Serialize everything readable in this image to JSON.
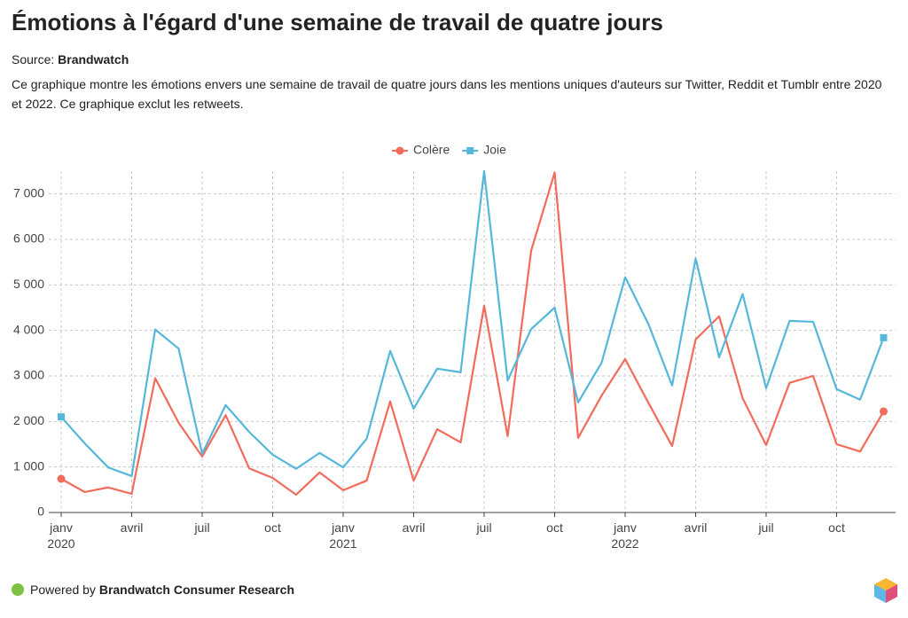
{
  "header": {
    "title": "Émotions à l'égard d'une semaine de travail de quatre jours",
    "source_label": "Source:",
    "source": "Brandwatch",
    "description": "Ce graphique montre les émotions envers une semaine de travail de quatre jours dans les mentions uniques d'auteurs sur Twitter, Reddit et Tumblr entre 2020 et 2022. Ce graphique exclut les retweets."
  },
  "footer": {
    "prefix": "Powered by",
    "brand": "Brandwatch Consumer Research"
  },
  "chart_data": {
    "type": "line",
    "categories": [
      "janv\n2020",
      null,
      null,
      "avril",
      null,
      null,
      "juil",
      null,
      null,
      "oct",
      null,
      null,
      "janv\n2021",
      null,
      null,
      "avril",
      null,
      null,
      "juil",
      null,
      null,
      "oct",
      null,
      null,
      "janv\n2022",
      null,
      null,
      "avril",
      null,
      null,
      "juil",
      null,
      null,
      "oct",
      null,
      null
    ],
    "series": [
      {
        "name": "Colère",
        "color": "#f26b5b",
        "values": [
          740,
          450,
          550,
          410,
          2950,
          1970,
          1230,
          2140,
          970,
          760,
          390,
          880,
          490,
          700,
          2440,
          700,
          1830,
          1540,
          4540,
          1680,
          5750,
          7470,
          1640,
          2570,
          3370,
          2400,
          1460,
          3800,
          4310,
          2510,
          1480,
          2850,
          3000,
          1500,
          1340,
          2220
        ]
      },
      {
        "name": "Joie",
        "color": "#55b7d9",
        "values": [
          2100,
          1520,
          990,
          800,
          4020,
          3600,
          1290,
          2360,
          1770,
          1270,
          960,
          1310,
          990,
          1620,
          3550,
          2280,
          3160,
          3080,
          7500,
          2900,
          4030,
          4500,
          2420,
          3290,
          5170,
          4130,
          2790,
          5580,
          3410,
          4800,
          2730,
          4210,
          4190,
          2710,
          2480,
          3840
        ]
      }
    ],
    "ylim": [
      0,
      7500
    ],
    "yticks": [
      0,
      {
        "value": 1000,
        "label": "1 000"
      },
      {
        "value": 2000,
        "label": "2 000"
      },
      {
        "value": 3000,
        "label": "3 000"
      },
      {
        "value": 4000,
        "label": "4 000"
      },
      {
        "value": 5000,
        "label": "5 000"
      },
      {
        "value": 6000,
        "label": "6 000"
      },
      {
        "value": 7000,
        "label": "7 000"
      }
    ],
    "grid": true,
    "legend": "top"
  }
}
